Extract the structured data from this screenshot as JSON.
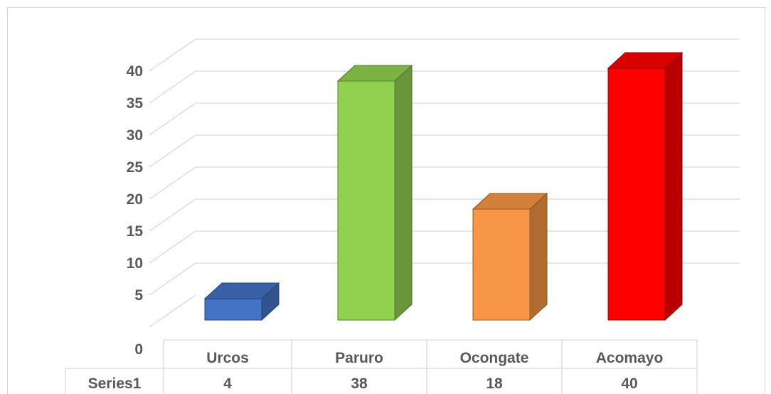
{
  "chart_data": {
    "type": "bar",
    "style": "3d-column",
    "categories": [
      "Urcos",
      "Paruro",
      "Ocongate",
      "Acomayo"
    ],
    "series": [
      {
        "name": "Series1",
        "values": [
          4,
          38,
          18,
          40
        ]
      }
    ],
    "colors": [
      "#4472c4",
      "#92d050",
      "#f79646",
      "#ff0000"
    ],
    "ylim": [
      0,
      40
    ],
    "yticks": [
      0,
      5,
      10,
      15,
      20,
      25,
      30,
      35,
      40
    ],
    "grid": true,
    "legend": "none",
    "data_table": true
  }
}
